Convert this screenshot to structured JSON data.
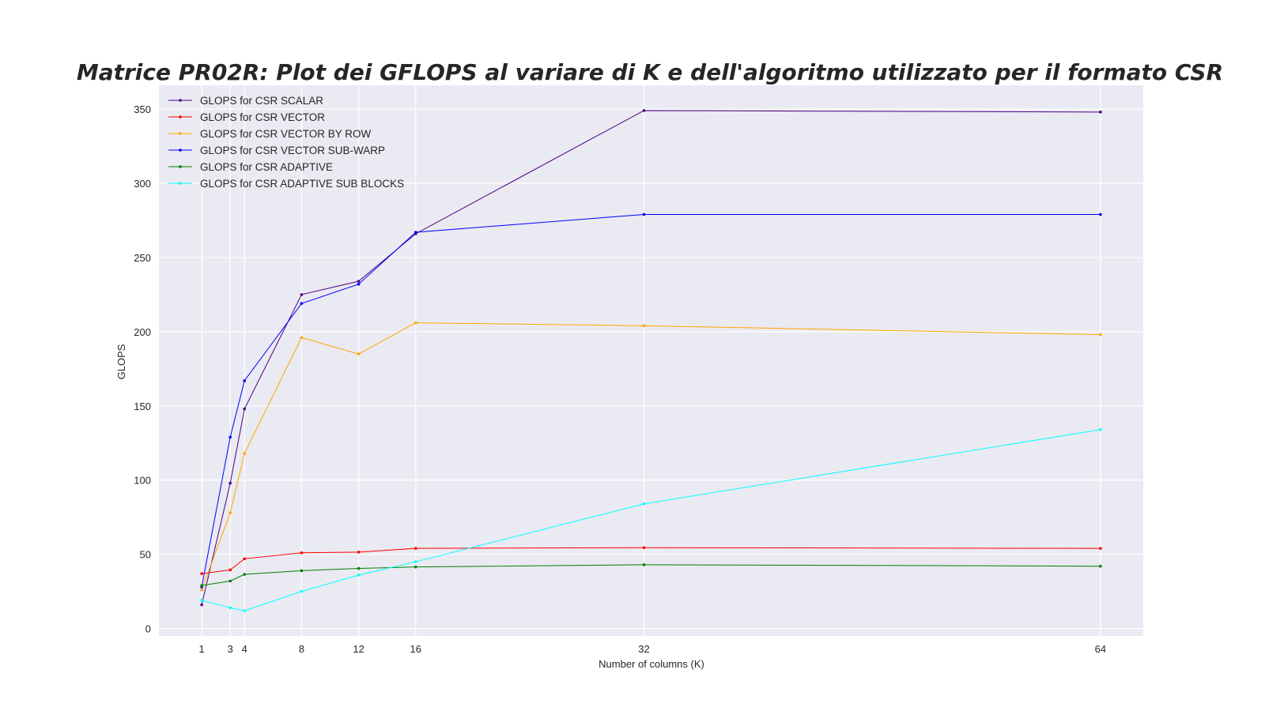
{
  "colors": {
    "figure_background": "#ffffff",
    "plot_background": "#eaeaf2",
    "grid": "#ffffff",
    "text": "#262626"
  },
  "chart_data": {
    "type": "line",
    "title": "Matrice PR02R: Plot dei GFLOPS al variare di K e dell'algoritmo utilizzato per il formato CSR",
    "xlabel": "Number of columns (K)",
    "ylabel": "GLOPS",
    "x": [
      1,
      3,
      4,
      8,
      12,
      16,
      32,
      64
    ],
    "xticks": [
      1,
      3,
      4,
      8,
      12,
      16,
      32,
      64
    ],
    "yticks": [
      0,
      50,
      100,
      150,
      200,
      250,
      300,
      350
    ],
    "xlim": [
      -2,
      67
    ],
    "ylim": [
      -5,
      366
    ],
    "grid": true,
    "legend_position": "top-left",
    "series": [
      {
        "name": "GLOPS for CSR SCALAR",
        "color": "#4b0082",
        "values": [
          16,
          98,
          148,
          225,
          234,
          266,
          349,
          348
        ]
      },
      {
        "name": "GLOPS for CSR VECTOR",
        "color": "#ff0000",
        "values": [
          37,
          39.5,
          47,
          51,
          51.5,
          54,
          54.5,
          54
        ]
      },
      {
        "name": "GLOPS for CSR VECTOR BY ROW",
        "color": "#ffa500",
        "values": [
          26,
          78,
          118,
          196,
          185,
          206,
          204,
          198
        ]
      },
      {
        "name": "GLOPS for CSR VECTOR SUB-WARP",
        "color": "#0000ff",
        "values": [
          28,
          129,
          167,
          219,
          232,
          267,
          279,
          279
        ]
      },
      {
        "name": "GLOPS for CSR ADAPTIVE",
        "color": "#008000",
        "values": [
          29,
          32,
          36.5,
          39,
          40.5,
          41.5,
          43,
          42
        ]
      },
      {
        "name": "GLOPS for CSR ADAPTIVE SUB BLOCKS",
        "color": "#00ffff",
        "values": [
          19,
          14,
          12,
          25,
          36,
          45,
          84,
          134
        ]
      }
    ]
  }
}
